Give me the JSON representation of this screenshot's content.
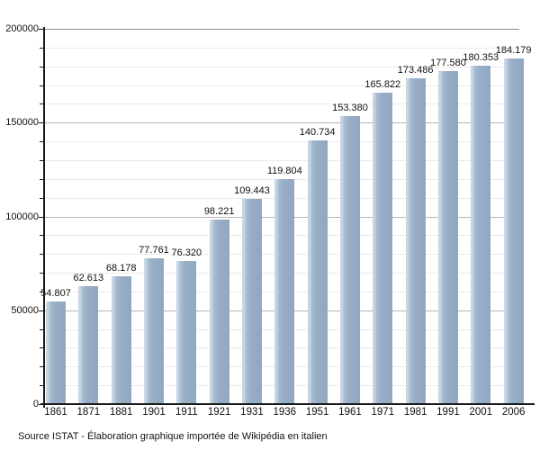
{
  "chart_data": {
    "type": "bar",
    "categories": [
      "1861",
      "1871",
      "1881",
      "1901",
      "1911",
      "1921",
      "1931",
      "1936",
      "1951",
      "1961",
      "1971",
      "1981",
      "1991",
      "2001",
      "2006"
    ],
    "values": [
      54807,
      62613,
      68178,
      77761,
      76320,
      98221,
      109443,
      119804,
      140734,
      153380,
      165822,
      173486,
      177580,
      180353,
      184179
    ],
    "value_labels": [
      "54.807",
      "62.613",
      "68.178",
      "77.761",
      "76.320",
      "98.221",
      "109.443",
      "119.804",
      "140.734",
      "153.380",
      "165.822",
      "173.486",
      "177.580",
      "180.353",
      "184.179"
    ],
    "title": "",
    "xlabel": "",
    "ylabel": "",
    "ylim": [
      0,
      200000
    ],
    "ytick_values": [
      0,
      50000,
      100000,
      150000,
      200000
    ],
    "ytick_labels": [
      "0",
      "50000",
      "100000",
      "150000",
      "200000"
    ],
    "minor_grid_step": 10000,
    "grid": true,
    "legend": "none",
    "colors": {
      "bar_body": "#98aec7",
      "bar_body_dark": "#90a7c1",
      "bar_highlight": "#c9d6e3",
      "major_grid": "#b5b5b5",
      "minor_grid": "#eaeaea",
      "axis": "#1a1a1a",
      "text": "#111111",
      "background": "#ffffff"
    }
  },
  "footer": {
    "source": "Source ISTAT - Élaboration graphique importée de Wikipédia en italien"
  }
}
